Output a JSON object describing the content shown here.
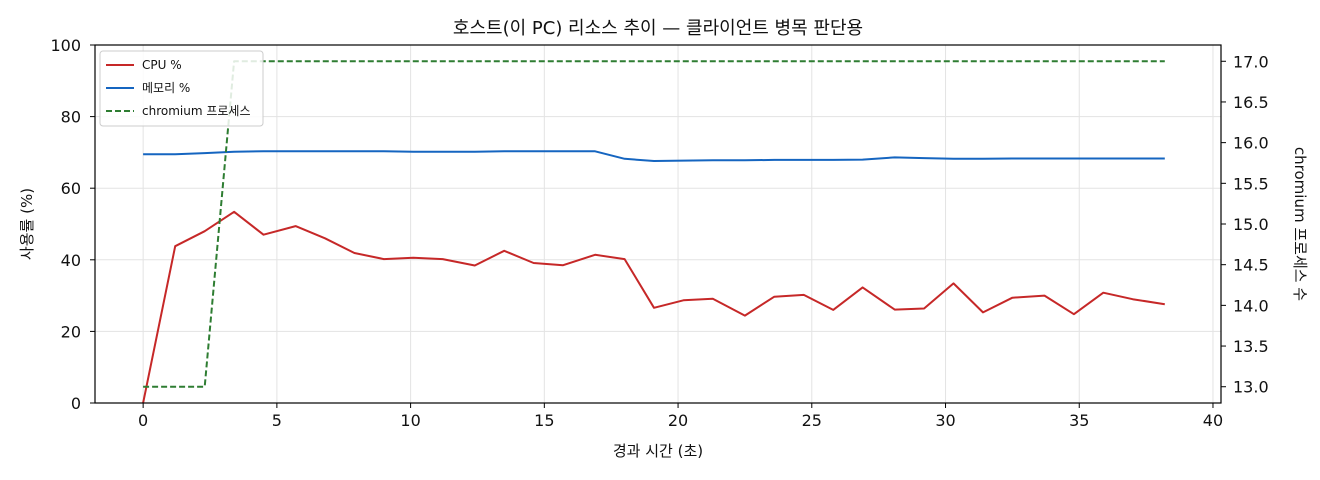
{
  "chart_data": {
    "type": "line",
    "title": "호스트(이 PC) 리소스 추이 — 클라이언트 병목 판단용",
    "xlabel": "경과 시간 (초)",
    "ylabel": "사용률 (%)",
    "ylabel_right": "chromium 프로세스 수",
    "xlim": [
      -1.8,
      40.3
    ],
    "ylim": [
      0,
      100
    ],
    "ylim_right": [
      12.8,
      17.2
    ],
    "x_ticks": [
      0,
      5,
      10,
      15,
      20,
      25,
      30,
      35,
      40
    ],
    "y_ticks": [
      0,
      20,
      40,
      60,
      80,
      100
    ],
    "y_ticks_right": [
      "13.0",
      "13.5",
      "14.0",
      "14.5",
      "15.0",
      "15.5",
      "16.0",
      "16.5",
      "17.0"
    ],
    "grid": true,
    "legend_position": "top-left",
    "x": [
      0.0,
      1.2,
      2.3,
      3.4,
      4.5,
      5.7,
      6.8,
      7.9,
      9.0,
      10.1,
      11.2,
      12.4,
      13.5,
      14.6,
      15.7,
      16.9,
      18.0,
      19.1,
      20.2,
      21.3,
      22.5,
      23.6,
      24.7,
      25.8,
      26.9,
      28.1,
      29.2,
      30.3,
      31.4,
      32.5,
      33.7,
      34.8,
      35.9,
      37.0,
      38.2
    ],
    "series": [
      {
        "name": "CPU %",
        "axis": "left",
        "color": "#c62828",
        "style": "solid",
        "values": [
          0,
          43.8,
          48.0,
          53.4,
          47.0,
          49.4,
          46.0,
          41.9,
          40.2,
          40.6,
          40.2,
          38.4,
          42.5,
          39.1,
          38.5,
          41.4,
          40.2,
          26.6,
          28.7,
          29.1,
          24.4,
          29.7,
          30.2,
          26.0,
          32.3,
          26.1,
          26.4,
          33.4,
          25.3,
          29.4,
          30.0,
          24.8,
          30.8,
          29.0,
          27.6
        ]
      },
      {
        "name": "메모리 %",
        "axis": "left",
        "color": "#1565c0",
        "style": "solid",
        "values": [
          69.5,
          69.5,
          69.8,
          70.2,
          70.3,
          70.3,
          70.3,
          70.3,
          70.3,
          70.2,
          70.2,
          70.2,
          70.3,
          70.3,
          70.3,
          70.3,
          68.2,
          67.6,
          67.7,
          67.8,
          67.8,
          67.9,
          67.9,
          67.9,
          68.0,
          68.6,
          68.4,
          68.2,
          68.2,
          68.3,
          68.3,
          68.3,
          68.3,
          68.3,
          68.3
        ]
      },
      {
        "name": "chromium 프로세스",
        "axis": "right",
        "color": "#2e7d32",
        "style": "dashed",
        "values": [
          13,
          13,
          13,
          17,
          17,
          17,
          17,
          17,
          17,
          17,
          17,
          17,
          17,
          17,
          17,
          17,
          17,
          17,
          17,
          17,
          17,
          17,
          17,
          17,
          17,
          17,
          17,
          17,
          17,
          17,
          17,
          17,
          17,
          17,
          17
        ]
      }
    ]
  }
}
